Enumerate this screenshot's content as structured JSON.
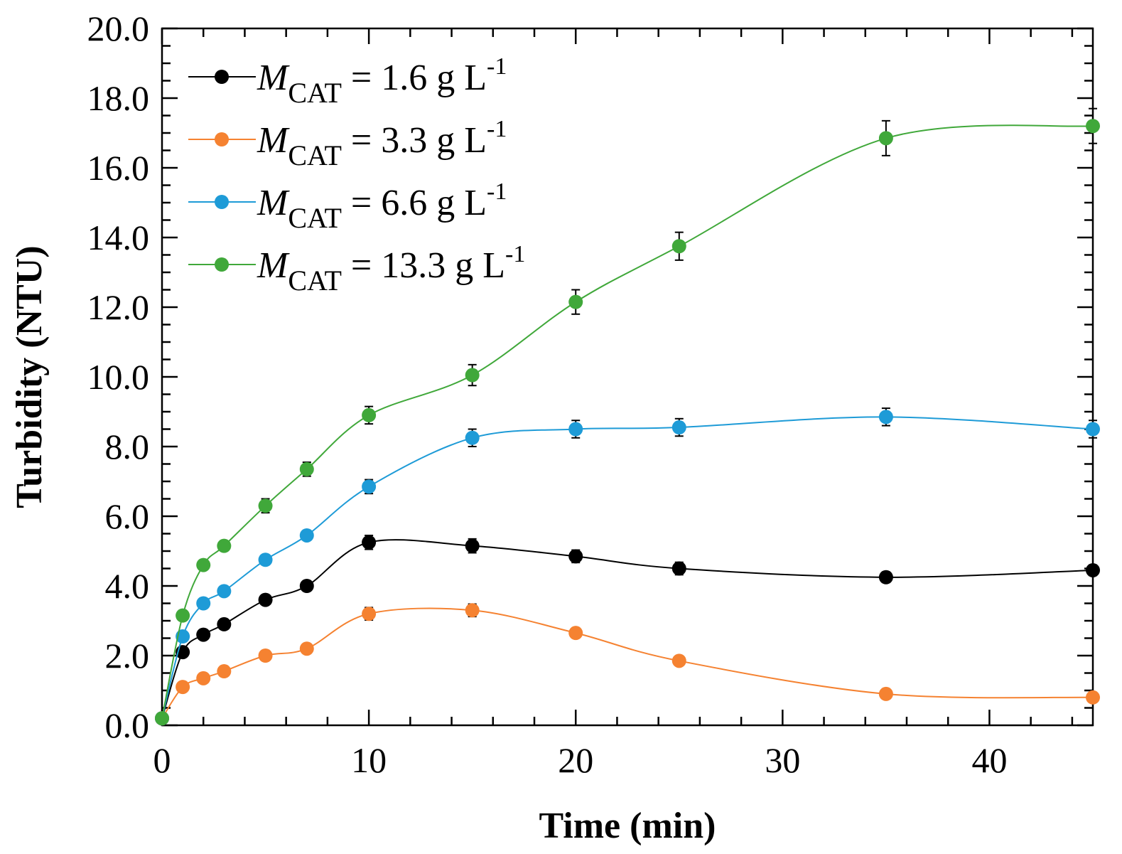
{
  "chart_data": {
    "type": "line",
    "title": "",
    "xlabel": "Time (min)",
    "ylabel": "Turbidity (NTU)",
    "xlim": [
      0,
      45
    ],
    "ylim": [
      0,
      20
    ],
    "xticks": [
      0,
      10,
      20,
      30,
      40
    ],
    "xtick_labels": [
      "0",
      "10",
      "20",
      "30",
      "40"
    ],
    "yticks": [
      0,
      2,
      4,
      6,
      8,
      10,
      12,
      14,
      16,
      18,
      20
    ],
    "ytick_labels": [
      "0.0",
      "2.0",
      "4.0",
      "6.0",
      "8.0",
      "10.0",
      "12.0",
      "14.0",
      "16.0",
      "18.0",
      "20.0"
    ],
    "grid": false,
    "legend_position": "top-left",
    "x": [
      0,
      1,
      2,
      3,
      5,
      7,
      10,
      15,
      20,
      25,
      35,
      45
    ],
    "series": [
      {
        "name": "M_CAT = 1.6 g L-1",
        "legend_var": "M",
        "legend_sub": "CAT",
        "legend_rest": " = 1.6 g L",
        "legend_sup": "-1",
        "color": "#000000",
        "values": [
          0.2,
          2.1,
          2.6,
          2.9,
          3.6,
          4.0,
          5.25,
          5.15,
          4.85,
          4.5,
          4.25,
          4.45
        ],
        "errors": [
          0,
          0,
          0,
          0,
          0,
          0,
          0.2,
          0.2,
          0.18,
          0.18,
          0.15,
          0.15
        ]
      },
      {
        "name": "M_CAT = 3.3 g L-1",
        "legend_var": "M",
        "legend_sub": "CAT",
        "legend_rest": " = 3.3 g L",
        "legend_sup": "-1",
        "color": "#f58231",
        "values": [
          0.2,
          1.1,
          1.35,
          1.55,
          2.0,
          2.2,
          3.2,
          3.3,
          2.65,
          1.85,
          0.9,
          0.8
        ],
        "errors": [
          0,
          0,
          0,
          0,
          0,
          0,
          0.18,
          0.18,
          0.12,
          0.1,
          0.1,
          0.1
        ]
      },
      {
        "name": "M_CAT = 6.6 g L-1",
        "legend_var": "M",
        "legend_sub": "CAT",
        "legend_rest": " = 6.6 g L",
        "legend_sup": "-1",
        "color": "#1e9bd7",
        "values": [
          0.2,
          2.55,
          3.5,
          3.85,
          4.75,
          5.45,
          6.85,
          8.25,
          8.5,
          8.55,
          8.85,
          8.5
        ],
        "errors": [
          0,
          0,
          0,
          0,
          0,
          0,
          0.2,
          0.25,
          0.25,
          0.25,
          0.25,
          0.25
        ]
      },
      {
        "name": "M_CAT = 13.3 g L-1",
        "legend_var": "M",
        "legend_sub": "CAT",
        "legend_rest": " = 13.3 g L",
        "legend_sup": "-1",
        "color": "#40a83a",
        "values": [
          0.2,
          3.15,
          4.6,
          5.15,
          6.3,
          7.35,
          8.9,
          10.05,
          12.15,
          13.75,
          16.85,
          17.2
        ],
        "errors": [
          0,
          0,
          0,
          0,
          0.2,
          0.2,
          0.25,
          0.3,
          0.35,
          0.4,
          0.5,
          0.5
        ]
      }
    ]
  }
}
